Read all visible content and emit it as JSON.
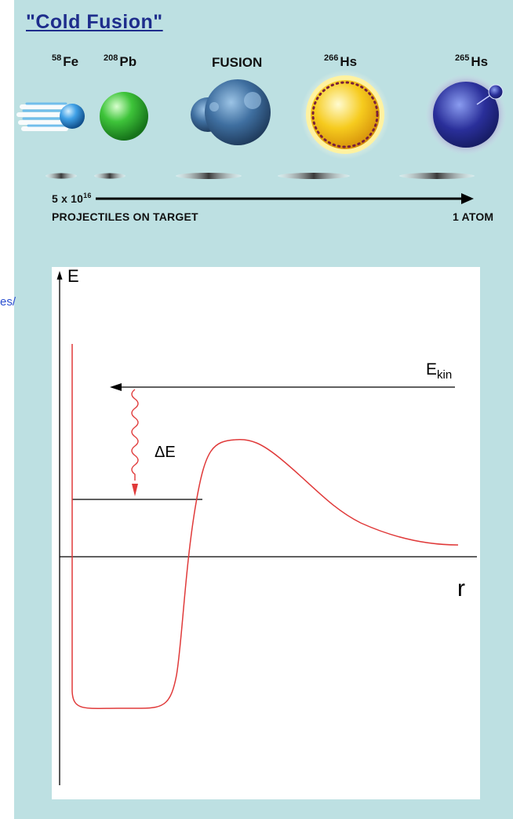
{
  "title": "\"Cold Fusion\"",
  "side_link_fragment": "es/",
  "nuclei": [
    {
      "mass": "58",
      "symbol": "Fe"
    },
    {
      "mass": "208",
      "symbol": "Pb"
    },
    {
      "mass": "",
      "symbol": "FUSION"
    },
    {
      "mass": "266",
      "symbol": "Hs"
    },
    {
      "mass": "265",
      "symbol": "Hs"
    }
  ],
  "projectiles": {
    "count_base": "5 x 10",
    "count_exp": "16",
    "caption": "PROJECTILES ON TARGET",
    "result": "1 ATOM"
  },
  "colors": {
    "panel": "#bde0e2",
    "title": "#1e2d8c",
    "potential_curve": "#e03a3a",
    "fe": "#3fa0e6",
    "pb": "#3ec43a",
    "fusion": "#3f6fa0",
    "hs266": "#f6cb1e",
    "hs265": "#2a2f9a"
  },
  "diagram": {
    "y_axis_label": "E",
    "x_axis_label": "r",
    "kinetic_label_main": "E",
    "kinetic_label_sub": "kin",
    "delta_label": "ΔE"
  }
}
